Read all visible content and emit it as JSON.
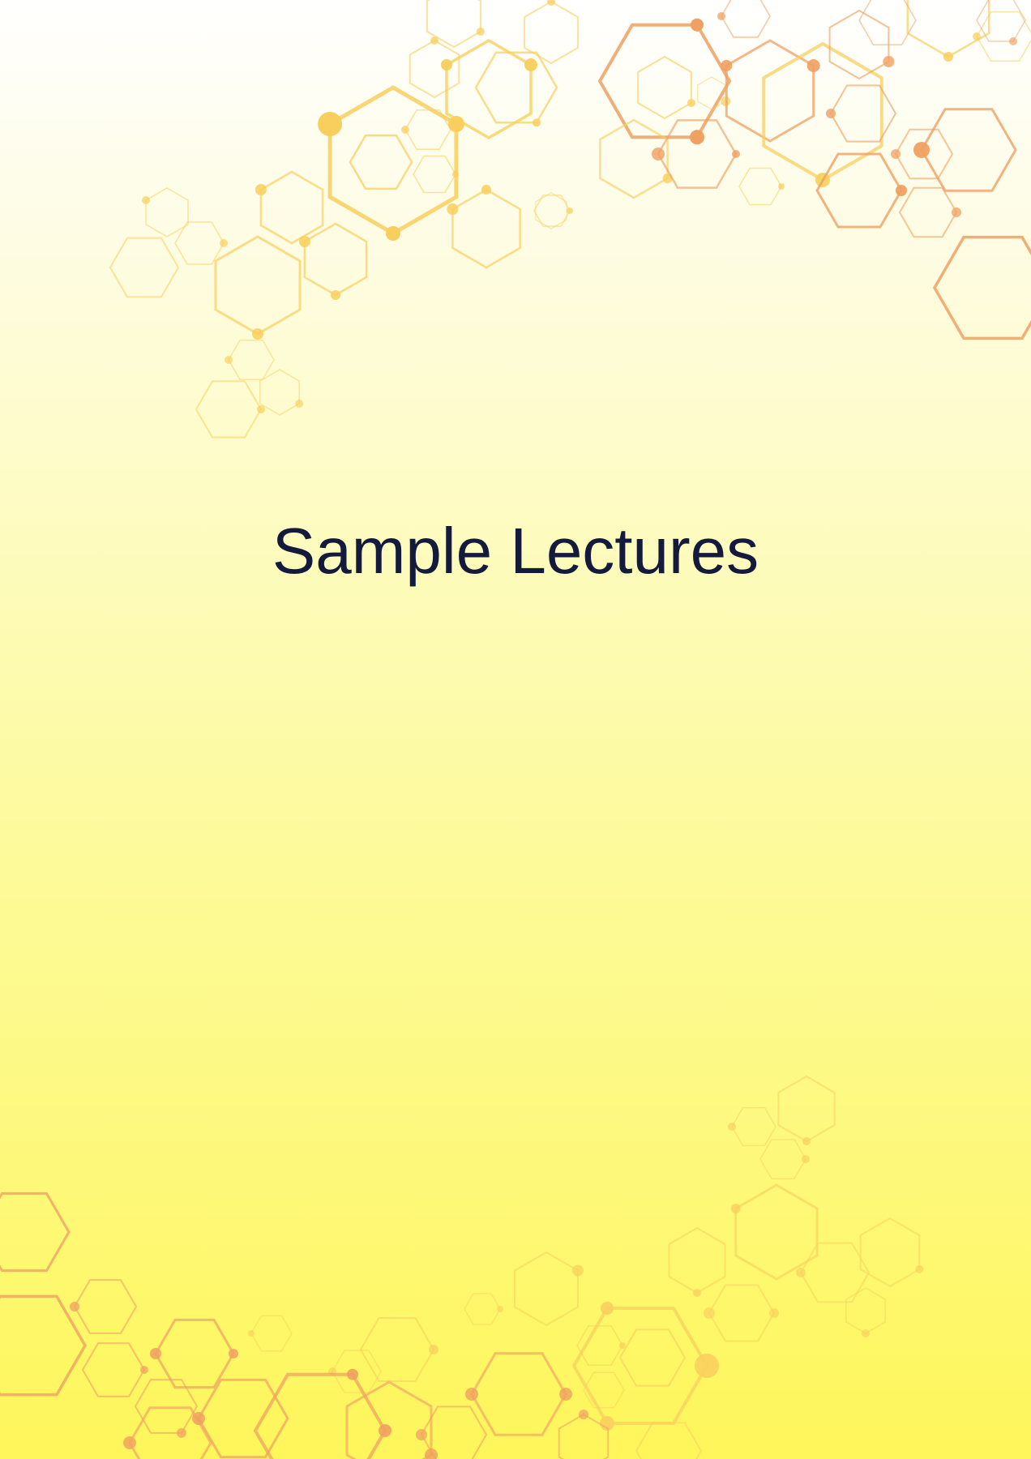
{
  "title": "Sample Lectures",
  "colors": {
    "title": "#141a3c",
    "hex_yellow": "#f8cf5d",
    "hex_orange": "#f0a061",
    "background_top": "#ffffff",
    "background_bottom": "#fef65a"
  },
  "decoration": {
    "motif": "hexagon-molecule-network",
    "regions": [
      "top-right",
      "bottom"
    ]
  }
}
